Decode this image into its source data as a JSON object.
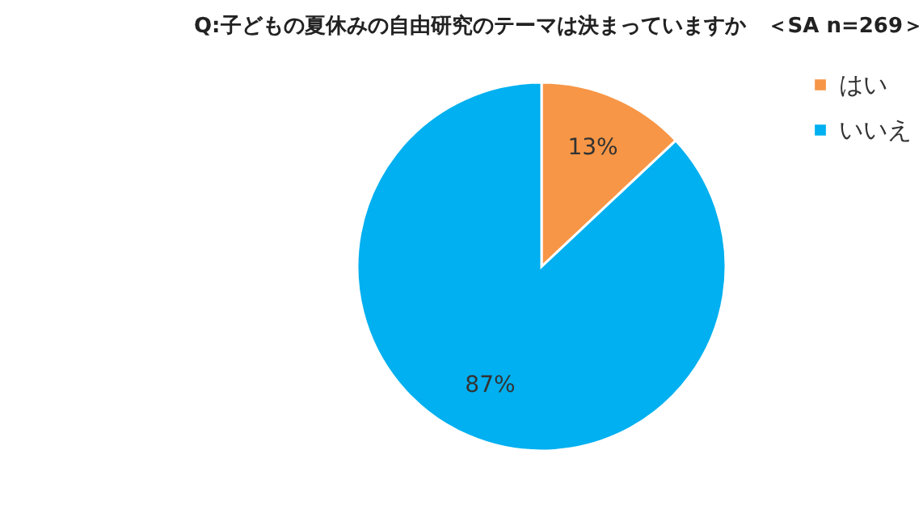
{
  "chart_data": {
    "type": "pie",
    "title": "Q:子どもの夏休みの自由研究のテーマは決まっていますか　＜SA n=269＞",
    "categories": [
      "はい",
      "いいえ"
    ],
    "values": [
      13,
      87
    ],
    "colors": [
      "#f79646",
      "#00b0f0"
    ],
    "value_labels": [
      "13%",
      "87%"
    ],
    "legend": "right"
  }
}
